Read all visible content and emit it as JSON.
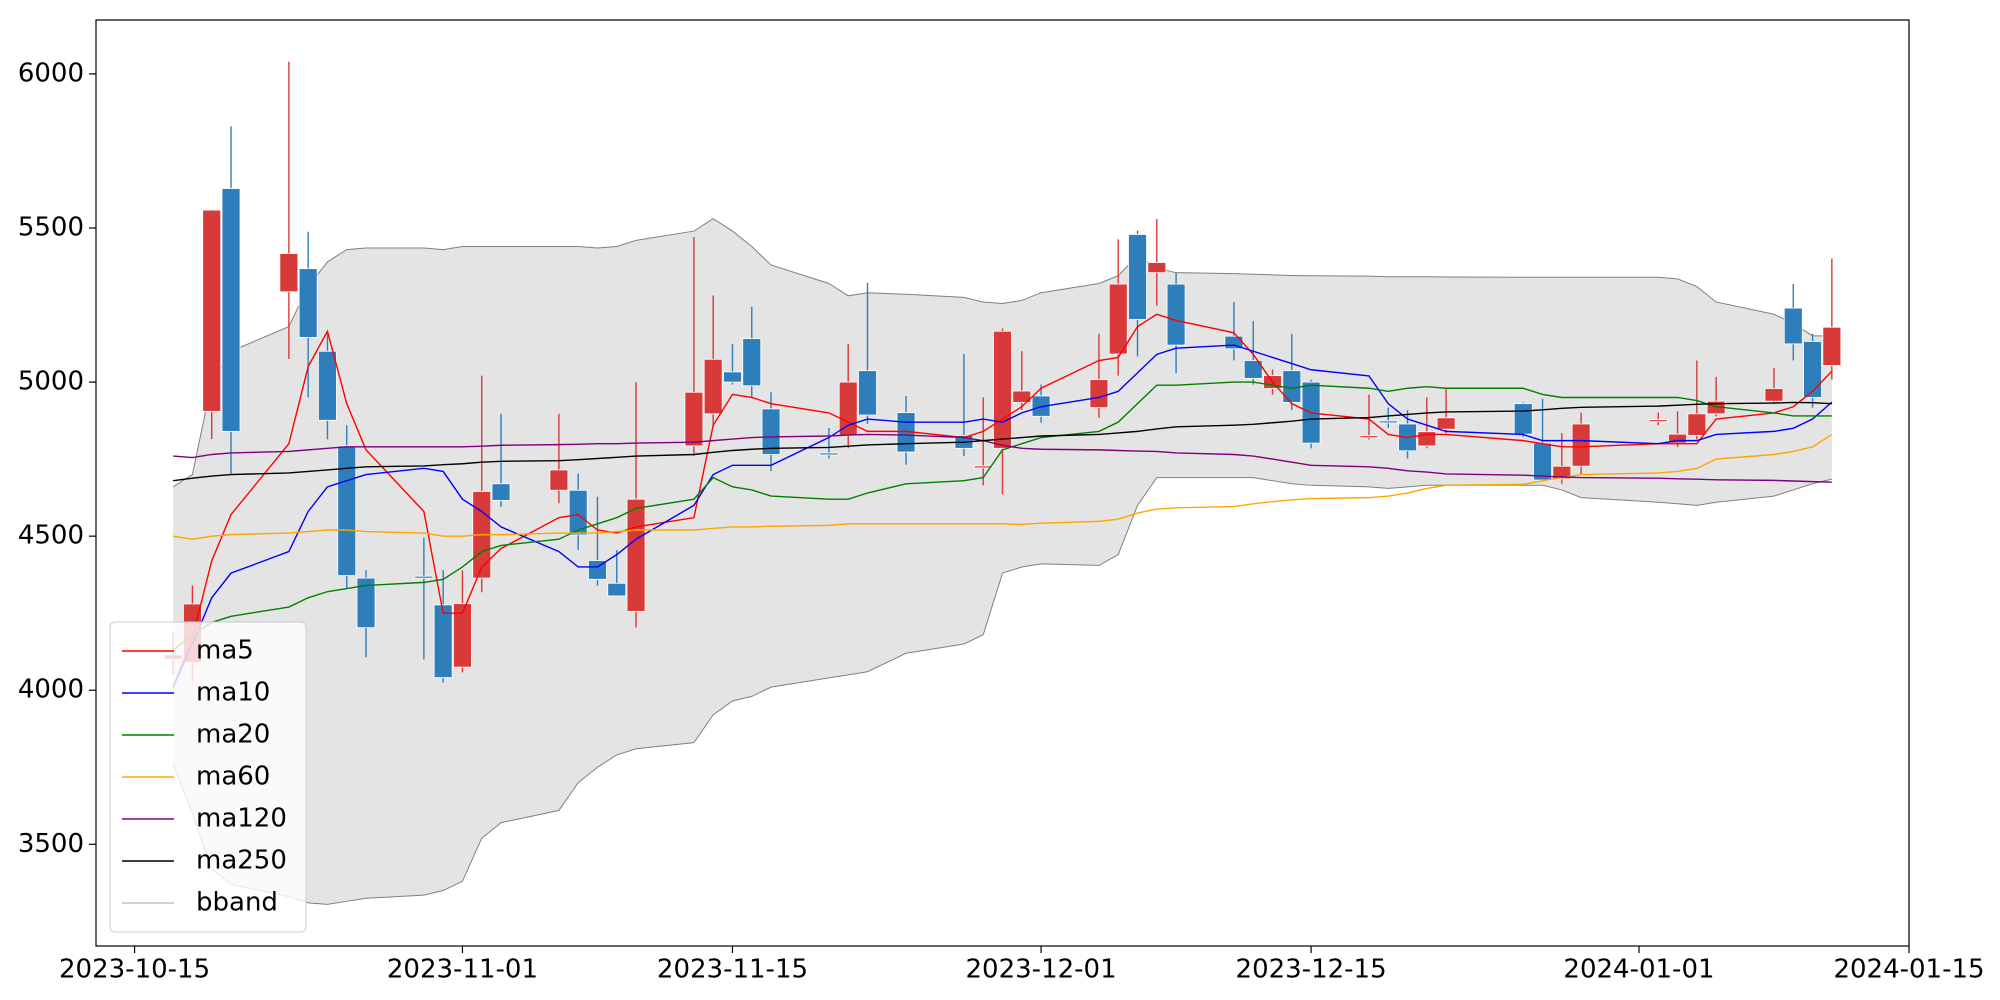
{
  "chart_data": {
    "type": "candlestick",
    "x": [
      "2023-10-17",
      "2023-10-18",
      "2023-10-19",
      "2023-10-20",
      "2023-10-23",
      "2023-10-24",
      "2023-10-25",
      "2023-10-26",
      "2023-10-27",
      "2023-10-30",
      "2023-10-31",
      "2023-11-01",
      "2023-11-02",
      "2023-11-03",
      "2023-11-06",
      "2023-11-07",
      "2023-11-08",
      "2023-11-09",
      "2023-11-10",
      "2023-11-13",
      "2023-11-14",
      "2023-11-15",
      "2023-11-16",
      "2023-11-17",
      "2023-11-20",
      "2023-11-21",
      "2023-11-22",
      "2023-11-24",
      "2023-11-27",
      "2023-11-28",
      "2023-11-29",
      "2023-11-30",
      "2023-12-01",
      "2023-12-04",
      "2023-12-05",
      "2023-12-06",
      "2023-12-07",
      "2023-12-08",
      "2023-12-11",
      "2023-12-12",
      "2023-12-13",
      "2023-12-14",
      "2023-12-15",
      "2023-12-18",
      "2023-12-19",
      "2023-12-20",
      "2023-12-21",
      "2023-12-22",
      "2023-12-26",
      "2023-12-27",
      "2023-12-28",
      "2023-12-29",
      "2024-01-02",
      "2024-01-03",
      "2024-01-04",
      "2024-01-05",
      "2024-01-08",
      "2024-01-09",
      "2024-01-10",
      "2024-01-11"
    ],
    "open": [
      4100,
      4090,
      4905,
      5628,
      5293,
      5368,
      5100,
      4793,
      4364,
      4370,
      4277,
      4075,
      4364,
      4670,
      4649,
      4649,
      4421,
      4347,
      4256,
      4793,
      4897,
      5033,
      5141,
      4913,
      4770,
      4827,
      5037,
      4901,
      4827,
      4722,
      4785,
      4934,
      4955,
      4917,
      5091,
      5479,
      5355,
      5318,
      5149,
      5070,
      4979,
      5037,
      5000,
      4820,
      4874,
      4864,
      4793,
      4847,
      4930,
      4802,
      4686,
      4727,
      4872,
      4802,
      4827,
      4897,
      4938,
      5240,
      5132,
      5054
    ],
    "high": [
      4190,
      4340,
      5560,
      5830,
      6040,
      5488,
      5157,
      4860,
      4390,
      4495,
      4390,
      4389,
      5021,
      4897,
      4897,
      4703,
      4628,
      4455,
      5000,
      5471,
      5281,
      5124,
      5244,
      4967,
      4851,
      5124,
      5322,
      4955,
      5091,
      4950,
      5174,
      5100,
      4992,
      5157,
      5463,
      5492,
      5529,
      5355,
      5260,
      5198,
      5041,
      5157,
      5008,
      4959,
      4917,
      4909,
      4950,
      4979,
      4934,
      4946,
      4835,
      4901,
      4901,
      4905,
      5070,
      5017,
      5046,
      5318,
      5157,
      5401
    ],
    "low": [
      4050,
      4030,
      4815,
      4700,
      5075,
      4950,
      4814,
      4330,
      4107,
      4100,
      4025,
      4058,
      4318,
      4595,
      4607,
      4455,
      4339,
      4306,
      4203,
      4760,
      4855,
      4992,
      4950,
      4711,
      4752,
      4785,
      4864,
      4732,
      4760,
      4665,
      4636,
      4909,
      4868,
      4884,
      5021,
      5083,
      5248,
      5029,
      5070,
      4992,
      4959,
      4909,
      4785,
      4814,
      4851,
      4752,
      4785,
      4835,
      4822,
      4678,
      4670,
      4702,
      4860,
      4789,
      4814,
      4889,
      4930,
      5070,
      4917,
      5008
    ],
    "close": [
      4115,
      4280,
      5558,
      4840,
      5417,
      5145,
      4876,
      4372,
      4203,
      4365,
      4041,
      4281,
      4645,
      4616,
      4715,
      4504,
      4360,
      4306,
      4620,
      4967,
      5074,
      5000,
      4988,
      4765,
      4765,
      5000,
      4893,
      4773,
      4785,
      4728,
      5165,
      4971,
      4889,
      5008,
      5318,
      5203,
      5388,
      5120,
      5108,
      5012,
      5021,
      4934,
      4802,
      4826,
      4870,
      4777,
      4839,
      4884,
      4831,
      4682,
      4727,
      4864,
      4878,
      4831,
      4897,
      4938,
      4979,
      5124,
      4950,
      5178
    ],
    "up_color": "#d83a3a",
    "down_color": "#2f7ebc",
    "series": [
      {
        "name": "ma5",
        "color": "#ff0000",
        "values": [
          4010,
          4170,
          4420,
          4570,
          4800,
          5050,
          5165,
          4930,
          4780,
          4580,
          4250,
          4250,
          4400,
          4460,
          4560,
          4570,
          4520,
          4510,
          4530,
          4560,
          4860,
          4960,
          4950,
          4930,
          4900,
          4870,
          4840,
          4840,
          4820,
          4840,
          4880,
          4920,
          4980,
          5070,
          5080,
          5180,
          5220,
          5200,
          5160,
          5090,
          5000,
          4930,
          4900,
          4880,
          4830,
          4820,
          4830,
          4830,
          4810,
          4800,
          4790,
          4790,
          4800,
          4800,
          4800,
          4880,
          4900,
          4920,
          4970,
          5035
        ]
      },
      {
        "name": "ma10",
        "color": "#0000ff",
        "values": [
          4010,
          4150,
          4300,
          4380,
          4450,
          4580,
          4660,
          4680,
          4700,
          4720,
          4710,
          4620,
          4580,
          4530,
          4450,
          4400,
          4400,
          4440,
          4490,
          4600,
          4700,
          4730,
          4730,
          4730,
          4820,
          4860,
          4880,
          4870,
          4870,
          4880,
          4870,
          4900,
          4920,
          4950,
          4970,
          5030,
          5090,
          5110,
          5120,
          5100,
          5080,
          5060,
          5040,
          5020,
          4930,
          4880,
          4860,
          4840,
          4830,
          4810,
          4810,
          4810,
          4800,
          4810,
          4810,
          4830,
          4840,
          4850,
          4880,
          4935
        ]
      },
      {
        "name": "ma20",
        "color": "#008000",
        "values": [
          4130,
          4180,
          4220,
          4240,
          4270,
          4300,
          4320,
          4330,
          4340,
          4350,
          4360,
          4400,
          4450,
          4470,
          4490,
          4520,
          4540,
          4560,
          4590,
          4620,
          4690,
          4660,
          4650,
          4630,
          4620,
          4620,
          4640,
          4670,
          4680,
          4690,
          4780,
          4800,
          4820,
          4840,
          4870,
          4930,
          4990,
          4990,
          5000,
          5000,
          4990,
          4980,
          4990,
          4980,
          4970,
          4980,
          4985,
          4980,
          4980,
          4960,
          4950,
          4950,
          4950,
          4950,
          4940,
          4920,
          4900,
          4890,
          4890,
          4890
        ]
      },
      {
        "name": "ma60",
        "color": "#ffa500",
        "values": [
          4500,
          4490,
          4500,
          4505,
          4510,
          4515,
          4520,
          4520,
          4515,
          4510,
          4500,
          4500,
          4505,
          4505,
          4510,
          4510,
          4510,
          4515,
          4520,
          4520,
          4525,
          4530,
          4530,
          4532,
          4535,
          4540,
          4540,
          4540,
          4540,
          4540,
          4540,
          4538,
          4542,
          4548,
          4555,
          4575,
          4588,
          4592,
          4596,
          4605,
          4612,
          4618,
          4622,
          4625,
          4630,
          4640,
          4655,
          4665,
          4668,
          4680,
          4690,
          4700,
          4705,
          4710,
          4720,
          4750,
          4765,
          4775,
          4790,
          4830
        ]
      },
      {
        "name": "ma120",
        "color": "#800080",
        "values": [
          4760,
          4755,
          4765,
          4770,
          4775,
          4780,
          4785,
          4790,
          4790,
          4790,
          4790,
          4790,
          4792,
          4795,
          4797,
          4798,
          4800,
          4800,
          4802,
          4805,
          4810,
          4815,
          4820,
          4822,
          4825,
          4828,
          4830,
          4828,
          4820,
          4810,
          4795,
          4785,
          4782,
          4780,
          4778,
          4776,
          4775,
          4770,
          4765,
          4760,
          4750,
          4740,
          4730,
          4725,
          4720,
          4712,
          4708,
          4702,
          4698,
          4695,
          4692,
          4690,
          4688,
          4686,
          4685,
          4683,
          4681,
          4679,
          4677,
          4675
        ]
      },
      {
        "name": "ma250",
        "color": "#000000",
        "values": [
          4680,
          4688,
          4695,
          4700,
          4705,
          4710,
          4715,
          4720,
          4725,
          4728,
          4732,
          4735,
          4740,
          4743,
          4745,
          4748,
          4752,
          4756,
          4760,
          4765,
          4772,
          4778,
          4782,
          4785,
          4788,
          4792,
          4796,
          4800,
          4805,
          4810,
          4815,
          4820,
          4825,
          4830,
          4835,
          4840,
          4848,
          4855,
          4860,
          4863,
          4868,
          4873,
          4880,
          4885,
          4890,
          4895,
          4900,
          4903,
          4906,
          4910,
          4915,
          4918,
          4922,
          4925,
          4928,
          4930,
          4932,
          4934,
          4933,
          4930
        ]
      }
    ],
    "bband": {
      "name": "bband",
      "color": "#808080",
      "fill": "#e4e4e4",
      "upper": [
        4660,
        4700,
        5000,
        5100,
        5180,
        5310,
        5390,
        5430,
        5435,
        5435,
        5430,
        5440,
        5440,
        5440,
        5440,
        5440,
        5435,
        5440,
        5460,
        5490,
        5530,
        5490,
        5440,
        5380,
        5320,
        5280,
        5290,
        5285,
        5275,
        5260,
        5255,
        5265,
        5290,
        5320,
        5345,
        5410,
        5370,
        5355,
        5352,
        5350,
        5348,
        5346,
        5345,
        5344,
        5342,
        5342,
        5342,
        5341,
        5340,
        5340,
        5340,
        5340,
        5340,
        5335,
        5310,
        5260,
        5220,
        5190,
        5150,
        5150
      ],
      "lower": [
        3760,
        3600,
        3420,
        3370,
        3330,
        3310,
        3305,
        3315,
        3325,
        3335,
        3350,
        3380,
        3520,
        3570,
        3610,
        3700,
        3750,
        3790,
        3810,
        3830,
        3920,
        3965,
        3980,
        4010,
        4040,
        4050,
        4060,
        4120,
        4150,
        4180,
        4380,
        4400,
        4410,
        4405,
        4440,
        4600,
        4690,
        4690,
        4690,
        4690,
        4680,
        4670,
        4665,
        4660,
        4655,
        4660,
        4665,
        4665,
        4665,
        4665,
        4650,
        4625,
        4610,
        4605,
        4600,
        4610,
        4630,
        4650,
        4670,
        4685
      ]
    },
    "xlim": [
      "2023-10-13",
      "2024-01-15"
    ],
    "xticks": [
      "2023-10-15",
      "2023-11-01",
      "2023-11-15",
      "2023-12-01",
      "2023-12-15",
      "2024-01-01",
      "2024-01-15"
    ],
    "ylim": [
      3170,
      6175
    ],
    "yticks": [
      3500,
      4000,
      4500,
      5000,
      5500,
      6000
    ],
    "legend": "lower left"
  }
}
